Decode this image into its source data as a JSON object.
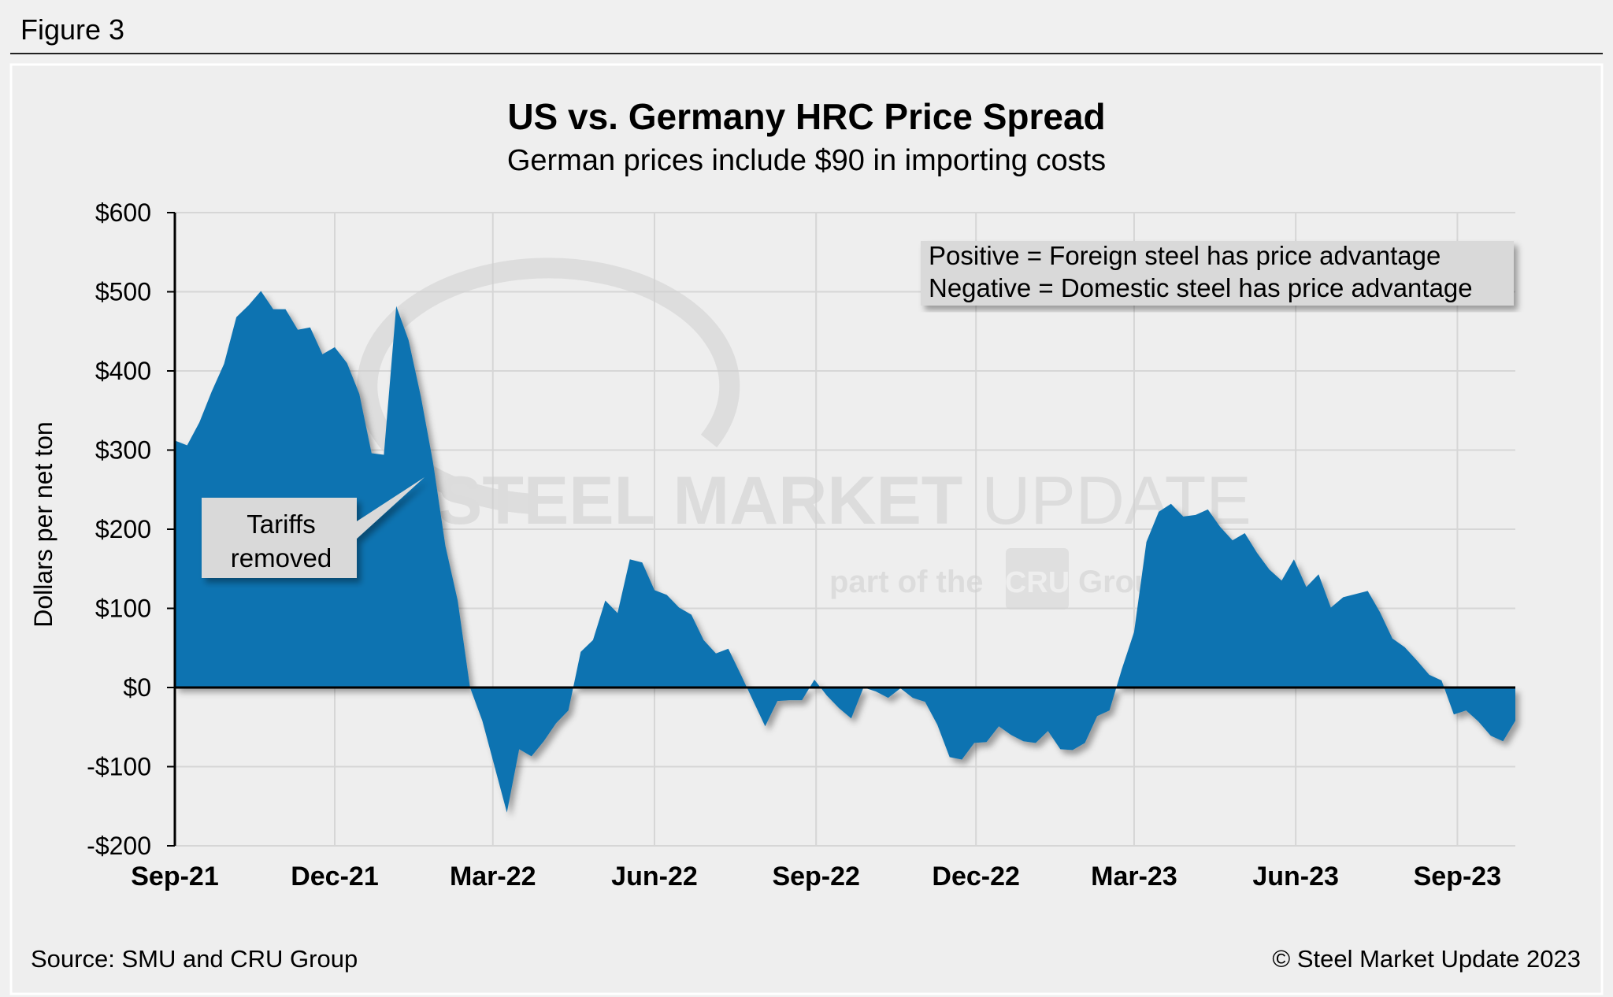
{
  "figure_label": "Figure 3",
  "footer": {
    "source": "Source: SMU and CRU Group",
    "copyright": "© Steel Market Update 2023"
  },
  "watermark": {
    "line1_bold": "STEEL MARKET",
    "line1_light": "UPDATE",
    "line2a": "part of the",
    "logo": "CRU",
    "line2b": "Group"
  },
  "chart_data": {
    "type": "area",
    "title": "US vs. Germany HRC Price Spread",
    "subtitle": "German prices include $90 in importing costs",
    "xlabel": "",
    "ylabel": "Dollars per net ton",
    "ylim": [
      -200,
      600
    ],
    "xlim": [
      "2021-09-01",
      "2023-10-04"
    ],
    "grid": true,
    "color": "#1173b1",
    "y_ticks": [
      {
        "value": 600,
        "label": "$600"
      },
      {
        "value": 500,
        "label": "$500"
      },
      {
        "value": 400,
        "label": "$400"
      },
      {
        "value": 300,
        "label": "$300"
      },
      {
        "value": 200,
        "label": "$200"
      },
      {
        "value": 100,
        "label": "$100"
      },
      {
        "value": 0,
        "label": "$0"
      },
      {
        "value": -100,
        "label": "-$100"
      },
      {
        "value": -200,
        "label": "-$200"
      }
    ],
    "x_ticks": [
      {
        "date": "2021-09-01",
        "label": "Sep-21"
      },
      {
        "date": "2021-12-01",
        "label": "Dec-21"
      },
      {
        "date": "2022-03-01",
        "label": "Mar-22"
      },
      {
        "date": "2022-06-01",
        "label": "Jun-22"
      },
      {
        "date": "2022-09-01",
        "label": "Sep-22"
      },
      {
        "date": "2022-12-01",
        "label": "Dec-22"
      },
      {
        "date": "2023-03-01",
        "label": "Mar-23"
      },
      {
        "date": "2023-06-01",
        "label": "Jun-23"
      },
      {
        "date": "2023-09-01",
        "label": "Sep-23"
      }
    ],
    "legend_note": [
      "Positive = Foreign steel has price advantage",
      "Negative = Domestic steel has price advantage"
    ],
    "annotation": {
      "text_line1": "Tariffs",
      "text_line2": "removed",
      "date": "2022-01-26",
      "value": 265
    },
    "series": [
      {
        "dates": [
          "2021-09-01",
          "2021-09-08",
          "2021-09-15",
          "2021-09-22",
          "2021-09-29",
          "2021-10-06",
          "2021-10-13",
          "2021-10-20",
          "2021-10-27",
          "2021-11-03",
          "2021-11-10",
          "2021-11-17",
          "2021-11-24",
          "2021-12-01",
          "2021-12-08",
          "2021-12-15",
          "2021-12-22",
          "2021-12-29",
          "2022-01-05",
          "2022-01-12",
          "2022-01-19",
          "2022-01-26",
          "2022-02-02",
          "2022-02-09",
          "2022-02-16",
          "2022-02-23",
          "2022-03-02",
          "2022-03-09",
          "2022-03-16",
          "2022-03-23",
          "2022-03-30",
          "2022-04-06",
          "2022-04-13",
          "2022-04-20",
          "2022-04-27",
          "2022-05-04",
          "2022-05-11",
          "2022-05-18",
          "2022-05-25",
          "2022-06-01",
          "2022-06-08",
          "2022-06-15",
          "2022-06-22",
          "2022-06-29",
          "2022-07-06",
          "2022-07-13",
          "2022-07-20",
          "2022-07-27",
          "2022-08-03",
          "2022-08-10",
          "2022-08-17",
          "2022-08-24",
          "2022-08-31",
          "2022-09-07",
          "2022-09-14",
          "2022-09-21",
          "2022-09-28",
          "2022-10-05",
          "2022-10-12",
          "2022-10-19",
          "2022-10-26",
          "2022-11-02",
          "2022-11-09",
          "2022-11-16",
          "2022-11-23",
          "2022-11-30",
          "2022-12-07",
          "2022-12-14",
          "2022-12-21",
          "2022-12-28",
          "2023-01-04",
          "2023-01-11",
          "2023-01-18",
          "2023-01-25",
          "2023-02-01",
          "2023-02-08",
          "2023-02-15",
          "2023-02-22",
          "2023-03-01",
          "2023-03-08",
          "2023-03-15",
          "2023-03-22",
          "2023-03-29",
          "2023-04-05",
          "2023-04-12",
          "2023-04-19",
          "2023-04-26",
          "2023-05-03",
          "2023-05-10",
          "2023-05-17",
          "2023-05-24",
          "2023-05-31",
          "2023-06-07",
          "2023-06-14",
          "2023-06-21",
          "2023-06-28",
          "2023-07-05",
          "2023-07-12",
          "2023-07-19",
          "2023-07-26",
          "2023-08-02",
          "2023-08-09",
          "2023-08-16",
          "2023-08-23",
          "2023-08-30",
          "2023-09-06",
          "2023-09-13",
          "2023-09-20",
          "2023-09-27",
          "2023-10-04"
        ],
        "values": [
          312,
          306,
          335,
          374,
          409,
          468,
          483,
          501,
          478,
          478,
          452,
          455,
          421,
          430,
          410,
          371,
          296,
          294,
          482,
          439,
          368,
          284,
          179,
          110,
          0,
          -42,
          -100,
          -158,
          -78,
          -87,
          -68,
          -45,
          -29,
          45,
          60,
          110,
          94,
          162,
          158,
          123,
          117,
          101,
          92,
          60,
          43,
          49,
          17,
          -16,
          -49,
          -17,
          -16,
          -16,
          10,
          -10,
          -26,
          -39,
          0,
          -5,
          -13,
          -1,
          -13,
          -18,
          -47,
          -88,
          -91,
          -70,
          -69,
          -49,
          -60,
          -68,
          -70,
          -55,
          -78,
          -79,
          -70,
          -36,
          -29,
          23,
          70,
          184,
          222,
          232,
          216,
          218,
          225,
          203,
          186,
          195,
          170,
          149,
          135,
          162,
          127,
          143,
          101,
          114,
          118,
          122,
          95,
          62,
          51,
          34,
          16,
          9,
          -34,
          -29,
          -43,
          -61,
          -68,
          -42
        ]
      }
    ]
  }
}
